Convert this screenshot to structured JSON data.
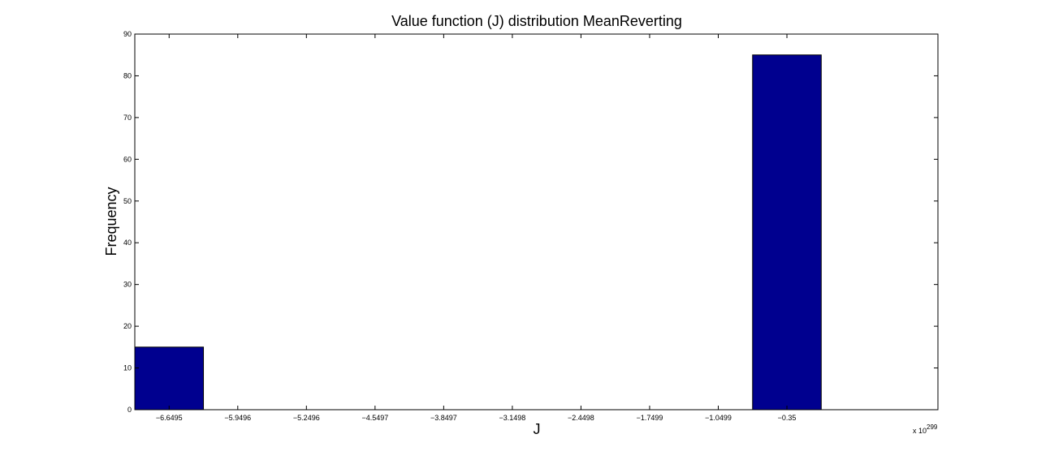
{
  "chart_data": {
    "type": "bar",
    "title": "Value function (J) distribution MeanReverting",
    "xlabel": "J",
    "ylabel": "Frequency",
    "x_multiplier": "x 10",
    "x_multiplier_exp": "299",
    "categories": [
      "-6.6495",
      "-5.9496",
      "-5.2496",
      "-4.5497",
      "-3.8497",
      "-3.1498",
      "-2.4498",
      "-1.7499",
      "-1.0499",
      "-0.35"
    ],
    "values": [
      15,
      0,
      0,
      0,
      0,
      0,
      0,
      0,
      0,
      85
    ],
    "ylim": [
      0,
      90
    ],
    "yticks": [
      0,
      10,
      20,
      30,
      40,
      50,
      60,
      70,
      80,
      90
    ],
    "x_range_bins": [
      -0.5,
      11.2
    ],
    "grid": false,
    "bar_color": "#00008f",
    "bar_edge_color": "#000000"
  }
}
